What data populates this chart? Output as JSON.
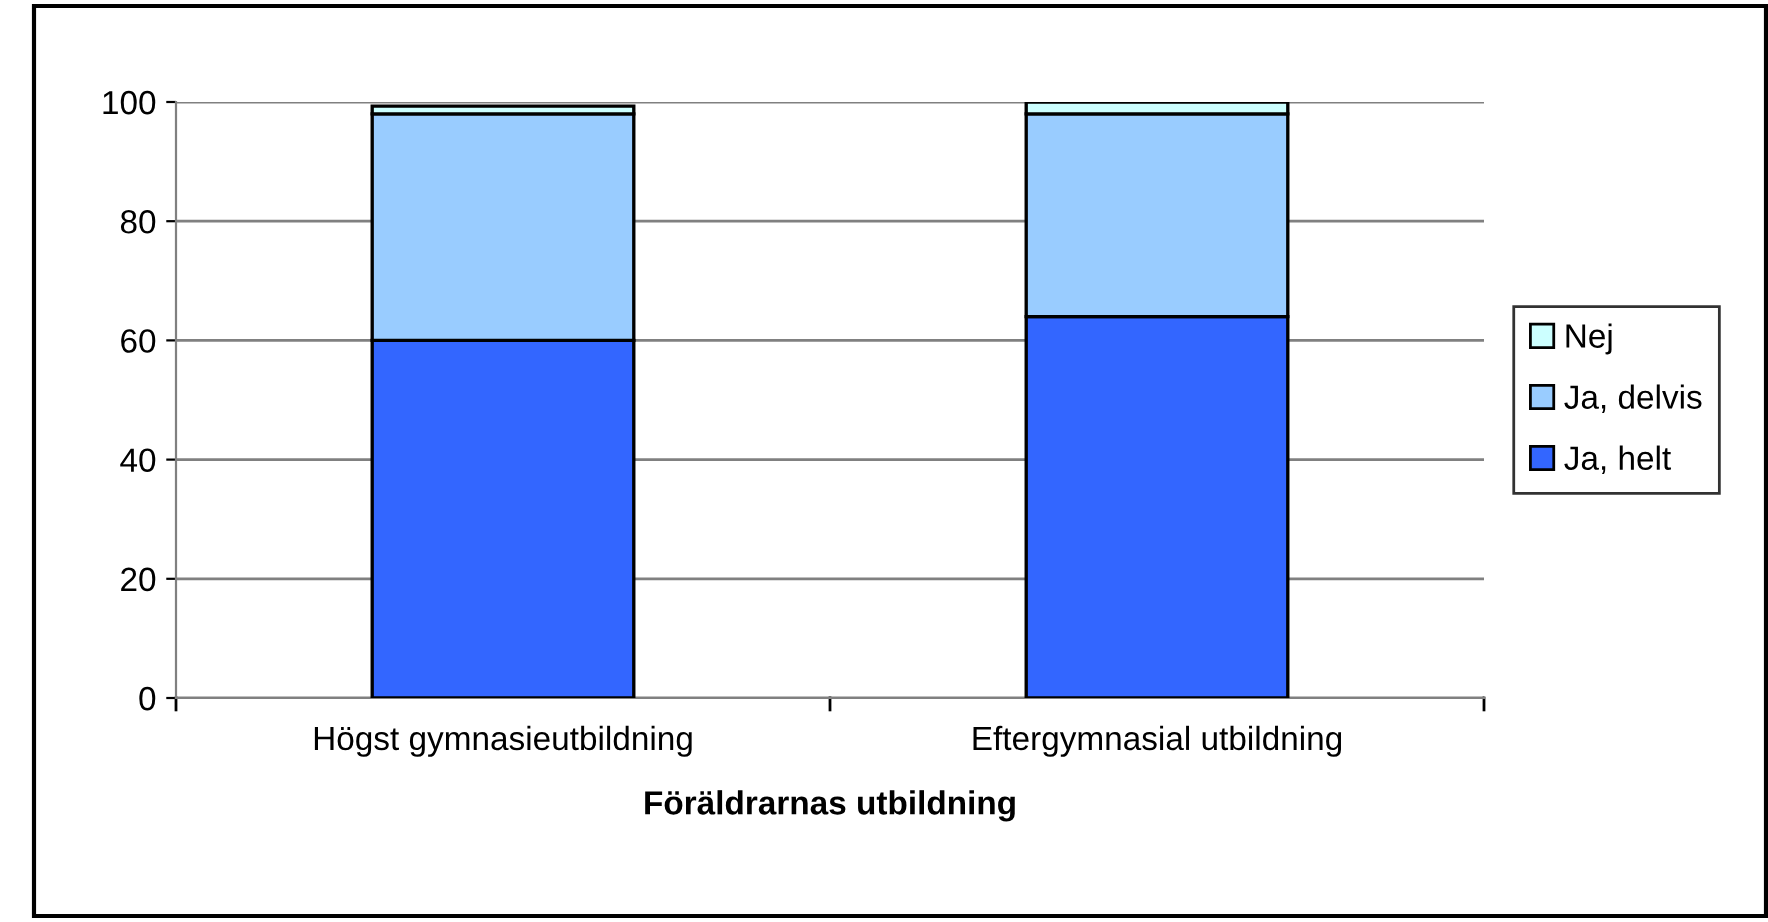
{
  "chart_data": {
    "type": "bar",
    "stacked": true,
    "xlabel": "Föräldrarnas utbildning",
    "categories": [
      "Högst gymnasieutbildning",
      "Eftergymnasial utbildning"
    ],
    "series": [
      {
        "name": "Ja, helt",
        "color": "#3366ff",
        "values": [
          60,
          64
        ]
      },
      {
        "name": "Ja, delvis",
        "color": "#99ccff",
        "values": [
          38,
          34
        ]
      },
      {
        "name": "Nej",
        "color": "#ccffff",
        "values": [
          1.3,
          2
        ]
      }
    ],
    "ylim": [
      0,
      100
    ],
    "yticks": [
      0,
      20,
      40,
      60,
      80,
      100
    ],
    "grid": "y",
    "legend": "right"
  }
}
